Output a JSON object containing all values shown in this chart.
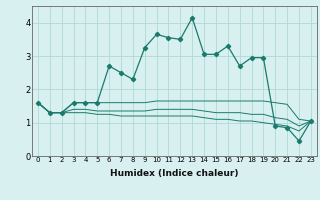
{
  "title": "",
  "xlabel": "Humidex (Indice chaleur)",
  "ylabel": "",
  "bg_color": "#d8f0f0",
  "line_color": "#1a7a6e",
  "grid_color": "#b0d8d8",
  "x_values": [
    0,
    1,
    2,
    3,
    4,
    5,
    6,
    7,
    8,
    9,
    10,
    11,
    12,
    13,
    14,
    15,
    16,
    17,
    18,
    19,
    20,
    21,
    22,
    23
  ],
  "line1_y": [
    1.6,
    1.3,
    1.3,
    1.6,
    1.6,
    1.6,
    2.7,
    2.5,
    2.3,
    3.25,
    3.65,
    3.55,
    3.5,
    4.15,
    3.05,
    3.05,
    3.3,
    2.7,
    2.95,
    2.95,
    0.9,
    0.85,
    0.45,
    1.05
  ],
  "line2_y": [
    1.6,
    1.3,
    1.3,
    1.6,
    1.6,
    1.6,
    1.6,
    1.6,
    1.6,
    1.6,
    1.65,
    1.65,
    1.65,
    1.65,
    1.65,
    1.65,
    1.65,
    1.65,
    1.65,
    1.65,
    1.6,
    1.55,
    1.1,
    1.05
  ],
  "line3_y": [
    1.6,
    1.3,
    1.3,
    1.4,
    1.4,
    1.35,
    1.35,
    1.35,
    1.35,
    1.35,
    1.4,
    1.4,
    1.4,
    1.4,
    1.35,
    1.3,
    1.3,
    1.3,
    1.25,
    1.25,
    1.15,
    1.1,
    0.9,
    1.05
  ],
  "line4_y": [
    1.6,
    1.3,
    1.3,
    1.3,
    1.3,
    1.25,
    1.25,
    1.2,
    1.2,
    1.2,
    1.2,
    1.2,
    1.2,
    1.2,
    1.15,
    1.1,
    1.1,
    1.05,
    1.05,
    1.0,
    0.95,
    0.9,
    0.75,
    1.05
  ],
  "ylim": [
    0,
    4.5
  ],
  "yticks": [
    0,
    1,
    2,
    3,
    4
  ],
  "xlim": [
    -0.5,
    23.5
  ]
}
